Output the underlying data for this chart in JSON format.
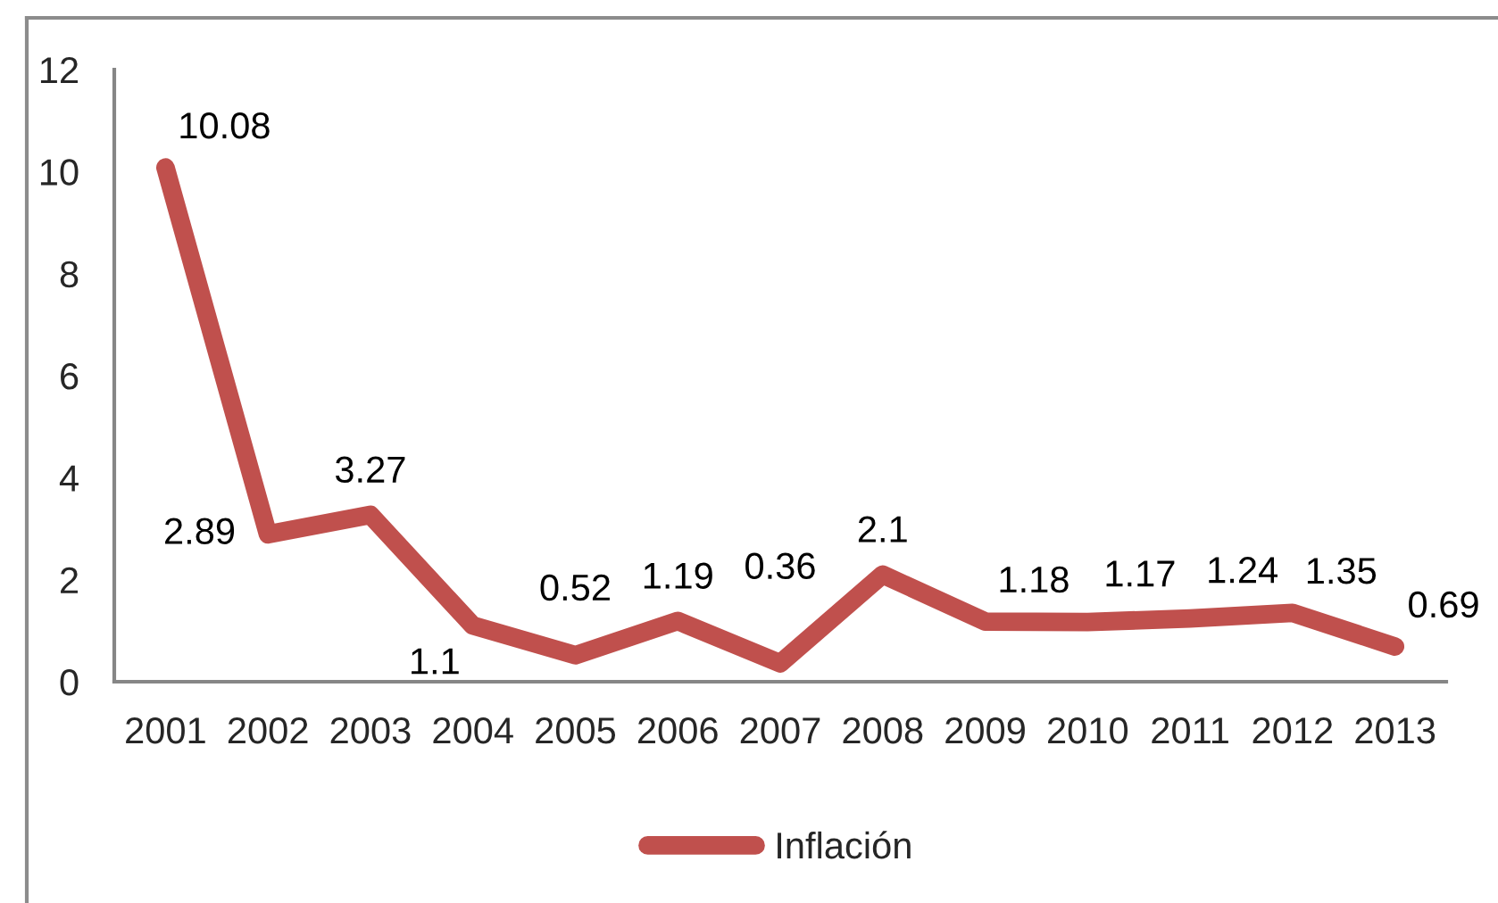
{
  "chart_data": {
    "type": "line",
    "categories": [
      "2001",
      "2002",
      "2003",
      "2004",
      "2005",
      "2006",
      "2007",
      "2008",
      "2009",
      "2010",
      "2011",
      "2012",
      "2013"
    ],
    "series": [
      {
        "name": "Inflación",
        "color": "#c0504d",
        "values": [
          10.08,
          2.89,
          3.27,
          1.1,
          0.52,
          1.19,
          0.36,
          2.1,
          1.18,
          1.17,
          1.24,
          1.35,
          0.69
        ]
      }
    ],
    "ylim": [
      0,
      12
    ],
    "yticks": [
      0,
      2,
      4,
      6,
      8,
      10,
      12
    ],
    "data_labels": true,
    "legend": "bottom",
    "grid": false,
    "marker": "none",
    "line_style": "solid"
  }
}
